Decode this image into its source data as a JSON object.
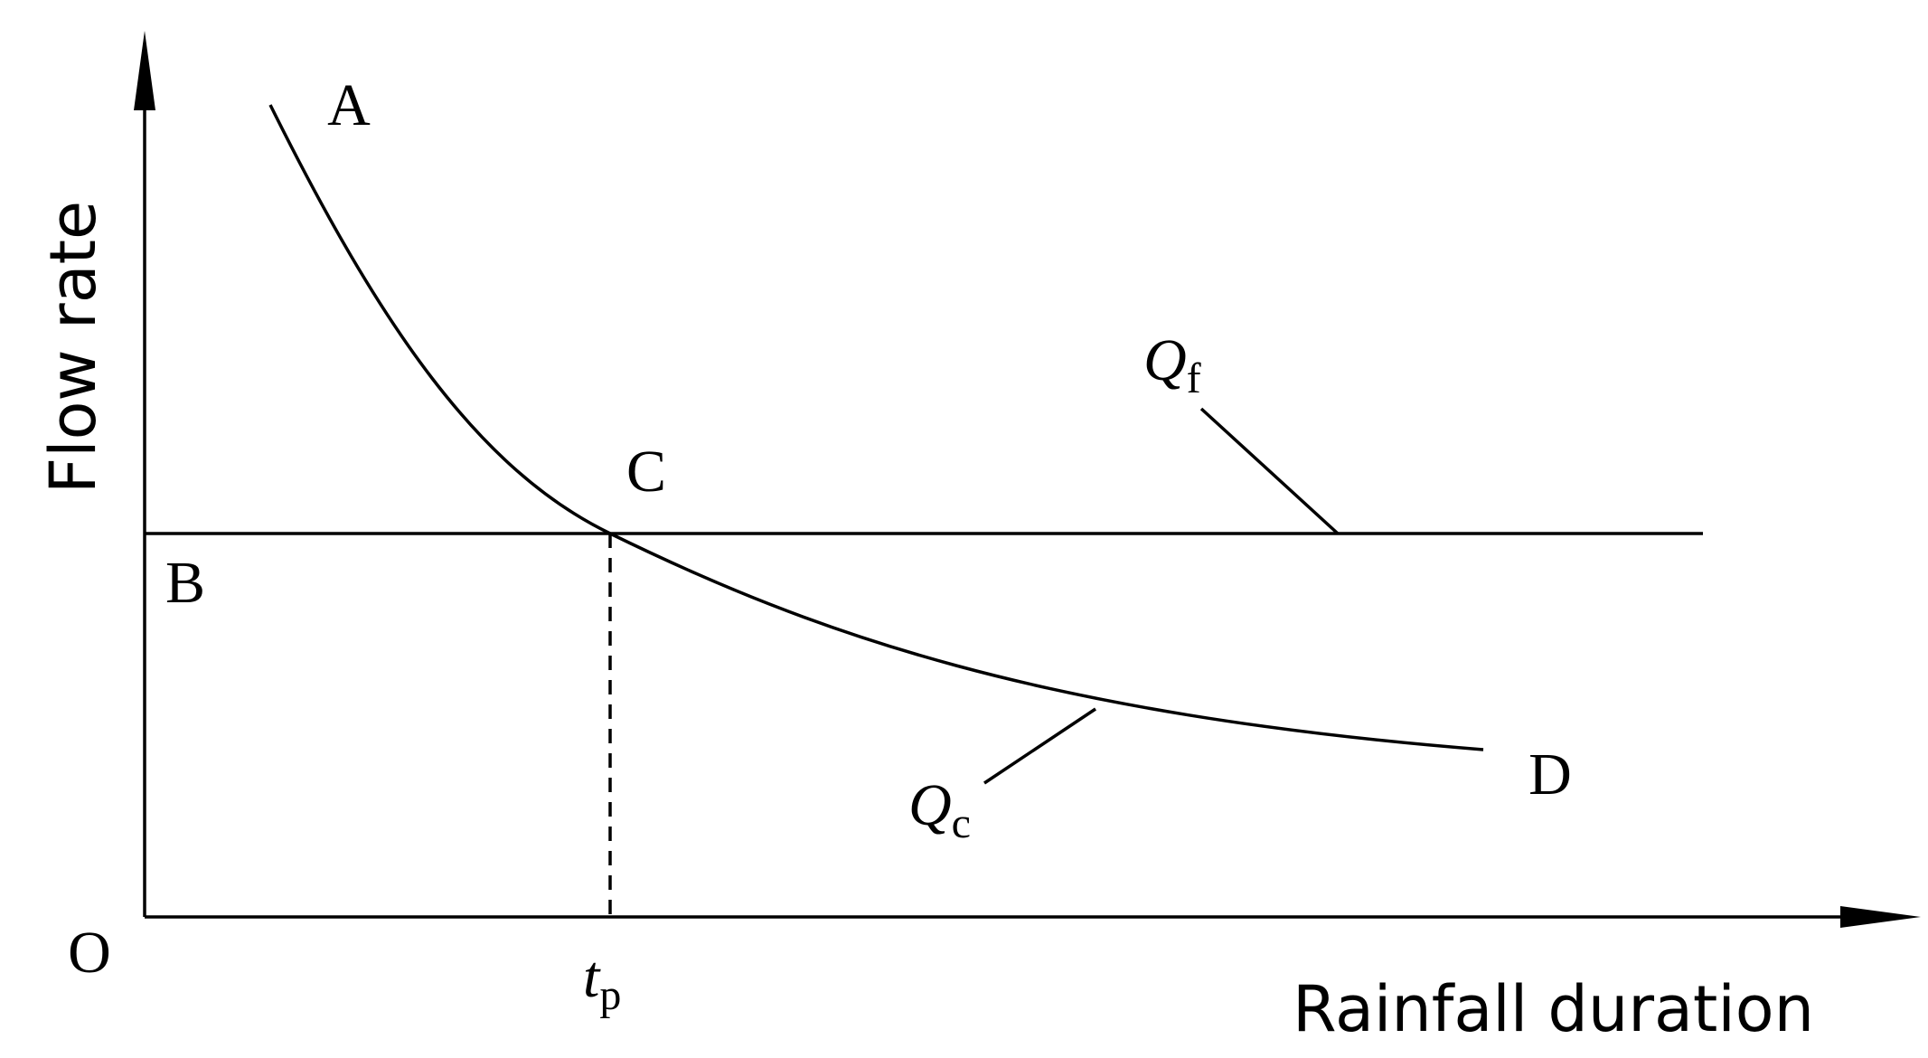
{
  "axes": {
    "y_label": "Flow rate",
    "x_label": "Rainfall duration",
    "origin": "O"
  },
  "points": {
    "a": "A",
    "b": "B",
    "c": "C",
    "d": "D"
  },
  "labels": {
    "qf": {
      "main": "Q",
      "sub": "f"
    },
    "qc": {
      "main": "Q",
      "sub": "c"
    },
    "tp": {
      "main": "t",
      "sub": "p"
    }
  }
}
